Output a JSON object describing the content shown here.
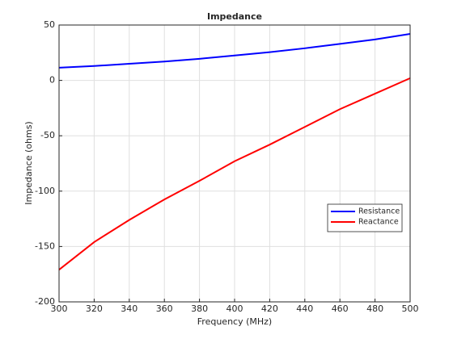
{
  "chart_data": {
    "type": "line",
    "title": "Impedance",
    "x_label": "Frequency (MHz)",
    "y_label": "Impedance (ohms)",
    "x": [
      300,
      320,
      340,
      360,
      380,
      400,
      420,
      440,
      460,
      480,
      500
    ],
    "series": [
      {
        "name": "Resistance",
        "color": "#0000ff",
        "values": [
          11.5,
          13,
          15,
          17,
          19.5,
          22.5,
          25.5,
          29,
          33,
          37,
          42
        ]
      },
      {
        "name": "Reactance",
        "color": "#ff0000",
        "values": [
          -171,
          -146,
          -126,
          -107.5,
          -90.7,
          -73,
          -58,
          -42,
          -26,
          -12,
          2
        ]
      }
    ],
    "xlim": [
      300,
      500
    ],
    "xticks": [
      300,
      320,
      340,
      360,
      380,
      400,
      420,
      440,
      460,
      480,
      500
    ],
    "ylim": [
      -200,
      50
    ],
    "yticks": [
      -200,
      -150,
      -100,
      -50,
      0,
      50
    ],
    "grid": true,
    "legend_loc": "right"
  }
}
